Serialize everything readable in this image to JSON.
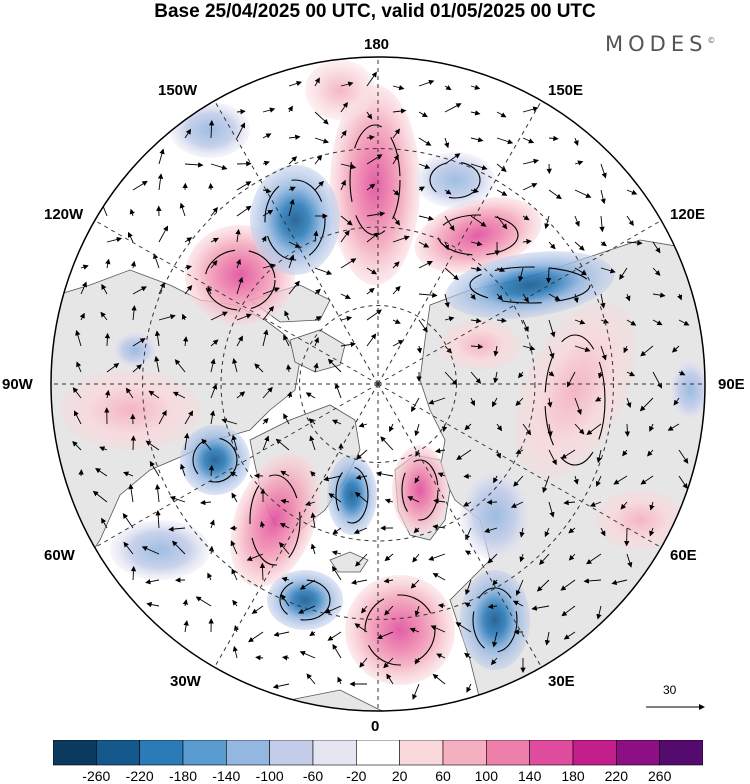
{
  "header": {
    "title": "Base 25/04/2025 00 UTC, valid 01/05/2025 00 UTC",
    "brand": "MODES",
    "brand_mark": "©"
  },
  "map": {
    "projection": "north polar stereographic",
    "longitude_labels": {
      "top": "180",
      "top_right": "150E",
      "upper_right": "120E",
      "right": "90E",
      "lower_right": "60E",
      "bottom_right": "30E",
      "bottom": "0",
      "bottom_left": "30W",
      "lower_left": "60W",
      "left": "90W",
      "upper_left": "120W",
      "top_left": "150W"
    },
    "reference_vector": "30",
    "colors": {
      "land": "#e6e6e6",
      "ocean": "#ffffff",
      "coast": "#555555"
    }
  },
  "colorbar": {
    "labels": [
      "-260",
      "-220",
      "-180",
      "-140",
      "-100",
      "-60",
      "-20",
      "20",
      "60",
      "100",
      "140",
      "180",
      "220",
      "260"
    ],
    "colors": [
      "#0c3a5e",
      "#14588c",
      "#2b7bb9",
      "#5a9cd0",
      "#93b7e0",
      "#c3cdea",
      "#e6e5f2",
      "#ffffff",
      "#f9d9dc",
      "#f4afc0",
      "#ee7fab",
      "#e04d9e",
      "#c21f8c",
      "#8c0f83",
      "#550a6e"
    ]
  }
}
